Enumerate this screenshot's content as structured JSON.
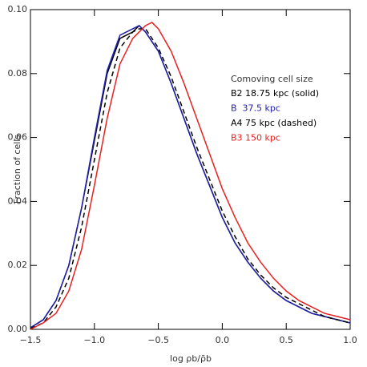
{
  "chart_data": {
    "type": "line",
    "xlabel": "log ρb/ρ̄b",
    "ylabel": "Fraction of cells",
    "legend_title": "Comoving cell size",
    "x": [
      -1.5,
      -1.4,
      -1.3,
      -1.2,
      -1.1,
      -1.0,
      -0.9,
      -0.8,
      -0.7,
      -0.65,
      -0.6,
      -0.55,
      -0.5,
      -0.4,
      -0.3,
      -0.2,
      -0.1,
      0.0,
      0.1,
      0.2,
      0.3,
      0.4,
      0.5,
      0.6,
      0.7,
      0.8,
      0.9,
      1.0
    ],
    "series": [
      {
        "name": "B2 18.75 kpc (solid)",
        "color": "#000000",
        "dash": false,
        "values": [
          0.0005,
          0.003,
          0.009,
          0.02,
          0.038,
          0.059,
          0.08,
          0.091,
          0.093,
          0.095,
          0.093,
          0.09,
          0.087,
          0.077,
          0.066,
          0.055,
          0.045,
          0.035,
          0.027,
          0.021,
          0.016,
          0.012,
          0.009,
          0.007,
          0.005,
          0.004,
          0.003,
          0.002
        ]
      },
      {
        "name": "B  37.5 kpc",
        "color": "#2020b0",
        "dash": false,
        "values": [
          0.0005,
          0.003,
          0.009,
          0.02,
          0.038,
          0.06,
          0.081,
          0.092,
          0.094,
          0.095,
          0.093,
          0.09,
          0.087,
          0.077,
          0.066,
          0.055,
          0.045,
          0.035,
          0.027,
          0.021,
          0.016,
          0.012,
          0.009,
          0.007,
          0.005,
          0.004,
          0.003,
          0.002
        ]
      },
      {
        "name": "A4 75 kpc (dashed)",
        "color": "#000000",
        "dash": true,
        "values": [
          0.0003,
          0.002,
          0.007,
          0.016,
          0.032,
          0.053,
          0.074,
          0.088,
          0.093,
          0.094,
          0.094,
          0.091,
          0.088,
          0.079,
          0.068,
          0.057,
          0.047,
          0.037,
          0.029,
          0.022,
          0.017,
          0.013,
          0.01,
          0.008,
          0.006,
          0.004,
          0.003,
          0.002
        ]
      },
      {
        "name": "B3 150 kpc",
        "color": "#e82020",
        "dash": false,
        "values": [
          0.0,
          0.002,
          0.005,
          0.012,
          0.025,
          0.045,
          0.066,
          0.083,
          0.091,
          0.093,
          0.095,
          0.096,
          0.094,
          0.087,
          0.077,
          0.066,
          0.055,
          0.044,
          0.035,
          0.027,
          0.021,
          0.016,
          0.012,
          0.009,
          0.007,
          0.005,
          0.004,
          0.003
        ]
      }
    ],
    "xlim": [
      -1.5,
      1.0
    ],
    "xticks": [
      {
        "value": -1.5,
        "label": "−1.5"
      },
      {
        "value": -1.0,
        "label": "−1.0"
      },
      {
        "value": -0.5,
        "label": "−0.5"
      },
      {
        "value": 0.0,
        "label": "0.0"
      },
      {
        "value": 0.5,
        "label": "0.5"
      },
      {
        "value": 1.0,
        "label": "1.0"
      }
    ],
    "ylim": [
      0,
      0.1
    ],
    "yticks": [
      {
        "value": 0,
        "label": "0.00"
      },
      0.02,
      0.04,
      0.06,
      0.08,
      {
        "value": 0.1,
        "label": "0.10"
      }
    ],
    "grid": false
  }
}
